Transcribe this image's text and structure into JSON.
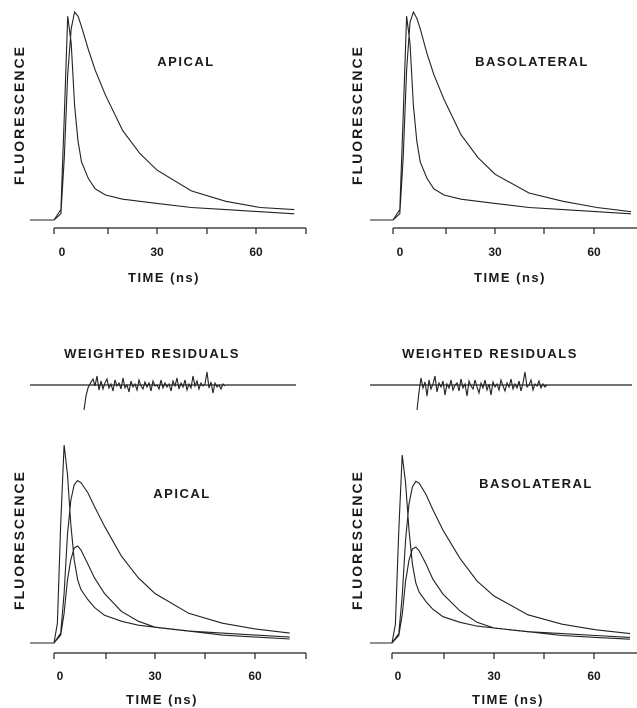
{
  "chart_data": [
    {
      "type": "line",
      "title": "APICAL",
      "ylabel": "FLUORESCENCE",
      "xlabel": "TIME (ns)",
      "x_ticks": [
        0,
        30,
        60
      ],
      "xlim": [
        -5,
        75
      ],
      "series": [
        {
          "x": [
            0,
            2,
            3,
            4,
            5,
            6,
            7,
            8,
            10,
            12,
            15,
            20,
            25,
            30,
            40,
            50,
            60,
            70
          ],
          "values": [
            0,
            0.05,
            0.5,
            0.98,
            0.85,
            0.55,
            0.38,
            0.28,
            0.2,
            0.15,
            0.12,
            0.1,
            0.09,
            0.08,
            0.06,
            0.05,
            0.04,
            0.03
          ]
        },
        {
          "x": [
            0,
            2,
            3,
            4,
            5,
            6,
            7,
            8,
            10,
            12,
            15,
            20,
            25,
            30,
            40,
            50,
            60,
            70
          ],
          "values": [
            0,
            0.03,
            0.3,
            0.7,
            0.92,
            1.0,
            0.98,
            0.93,
            0.82,
            0.72,
            0.6,
            0.43,
            0.32,
            0.24,
            0.14,
            0.09,
            0.06,
            0.05
          ]
        }
      ]
    },
    {
      "type": "line",
      "title": "BASOLATERAL",
      "ylabel": "FLUORESCENCE",
      "xlabel": "TIME (ns)",
      "x_ticks": [
        0,
        30,
        60
      ],
      "xlim": [
        -5,
        75
      ],
      "series": [
        {
          "x": [
            0,
            2,
            3,
            4,
            5,
            6,
            7,
            8,
            10,
            12,
            15,
            20,
            25,
            30,
            40,
            50,
            60,
            70
          ],
          "values": [
            0,
            0.05,
            0.5,
            0.98,
            0.85,
            0.55,
            0.38,
            0.28,
            0.2,
            0.15,
            0.12,
            0.1,
            0.09,
            0.08,
            0.06,
            0.05,
            0.04,
            0.03
          ]
        },
        {
          "x": [
            0,
            2,
            3,
            4,
            5,
            6,
            7,
            8,
            10,
            12,
            15,
            20,
            25,
            30,
            40,
            50,
            60,
            70
          ],
          "values": [
            0,
            0.03,
            0.3,
            0.72,
            0.95,
            1.0,
            0.97,
            0.92,
            0.8,
            0.7,
            0.58,
            0.41,
            0.3,
            0.22,
            0.13,
            0.09,
            0.06,
            0.04
          ]
        }
      ]
    },
    {
      "type": "line",
      "title": "WEIGHTED RESIDUALS",
      "residuals": true
    },
    {
      "type": "line",
      "title": "WEIGHTED RESIDUALS",
      "residuals": true
    },
    {
      "type": "line",
      "title": "APICAL",
      "ylabel": "FLUORESCENCE",
      "xlabel": "TIME (ns)",
      "x_ticks": [
        0,
        30,
        60
      ],
      "xlim": [
        -5,
        75
      ],
      "series": [
        {
          "x": [
            0,
            1,
            2,
            3,
            4,
            5,
            6,
            7,
            8,
            10,
            12,
            15,
            20,
            25,
            30,
            40,
            50,
            60,
            70
          ],
          "values": [
            0,
            0.1,
            0.6,
            1.0,
            0.85,
            0.6,
            0.42,
            0.32,
            0.27,
            0.22,
            0.18,
            0.14,
            0.11,
            0.09,
            0.08,
            0.06,
            0.05,
            0.04,
            0.03
          ]
        },
        {
          "x": [
            0,
            2,
            3,
            4,
            5,
            6,
            7,
            8,
            10,
            12,
            15,
            20,
            25,
            30,
            40,
            50,
            60,
            70
          ],
          "values": [
            0,
            0.05,
            0.25,
            0.55,
            0.72,
            0.8,
            0.82,
            0.81,
            0.76,
            0.69,
            0.59,
            0.44,
            0.33,
            0.25,
            0.15,
            0.1,
            0.07,
            0.05
          ]
        },
        {
          "x": [
            0,
            2,
            3,
            4,
            5,
            6,
            7,
            8,
            10,
            12,
            15,
            20,
            25,
            30,
            40,
            50,
            60,
            70
          ],
          "values": [
            0,
            0.04,
            0.15,
            0.32,
            0.42,
            0.48,
            0.49,
            0.47,
            0.4,
            0.33,
            0.25,
            0.16,
            0.11,
            0.08,
            0.06,
            0.04,
            0.03,
            0.02
          ]
        }
      ]
    },
    {
      "type": "line",
      "title": "BASOLATERAL",
      "ylabel": "FLUORESCENCE",
      "xlabel": "TIME (ns)",
      "x_ticks": [
        0,
        30,
        60
      ],
      "xlim": [
        -5,
        75
      ],
      "series": [
        {
          "x": [
            0,
            1,
            2,
            3,
            4,
            5,
            6,
            7,
            8,
            10,
            12,
            15,
            20,
            25,
            30,
            40,
            50,
            60,
            70
          ],
          "values": [
            0,
            0.1,
            0.6,
            1.0,
            0.85,
            0.6,
            0.42,
            0.32,
            0.27,
            0.22,
            0.18,
            0.14,
            0.11,
            0.09,
            0.08,
            0.06,
            0.05,
            0.04,
            0.03
          ]
        },
        {
          "x": [
            0,
            2,
            3,
            4,
            5,
            6,
            7,
            8,
            10,
            12,
            15,
            20,
            25,
            30,
            40,
            50,
            60,
            70
          ],
          "values": [
            0,
            0.05,
            0.25,
            0.55,
            0.74,
            0.83,
            0.86,
            0.85,
            0.79,
            0.71,
            0.6,
            0.45,
            0.33,
            0.25,
            0.15,
            0.1,
            0.07,
            0.05
          ]
        },
        {
          "x": [
            0,
            2,
            3,
            4,
            5,
            6,
            7,
            8,
            10,
            12,
            15,
            20,
            25,
            30,
            40,
            50,
            60,
            70
          ],
          "values": [
            0,
            0.04,
            0.15,
            0.33,
            0.44,
            0.5,
            0.51,
            0.49,
            0.42,
            0.34,
            0.26,
            0.17,
            0.11,
            0.08,
            0.06,
            0.04,
            0.03,
            0.02
          ]
        }
      ]
    }
  ],
  "labels": {
    "p1_ylabel": "FLUORESCENCE",
    "p1_title": "APICAL",
    "p1_xlabel": "TIME (ns)",
    "p2_ylabel": "FLUORESCENCE",
    "p2_title": "BASOLATERAL",
    "p2_xlabel": "TIME (ns)",
    "r1_title": "WEIGHTED RESIDUALS",
    "r2_title": "WEIGHTED RESIDUALS",
    "p3_ylabel": "FLUORESCENCE",
    "p3_title": "APICAL",
    "p3_xlabel": "TIME (ns)",
    "p4_ylabel": "FLUORESCENCE",
    "p4_title": "BASOLATERAL",
    "p4_xlabel": "TIME (ns)"
  },
  "ticks": {
    "t0": "0",
    "t30": "30",
    "t60": "60"
  }
}
